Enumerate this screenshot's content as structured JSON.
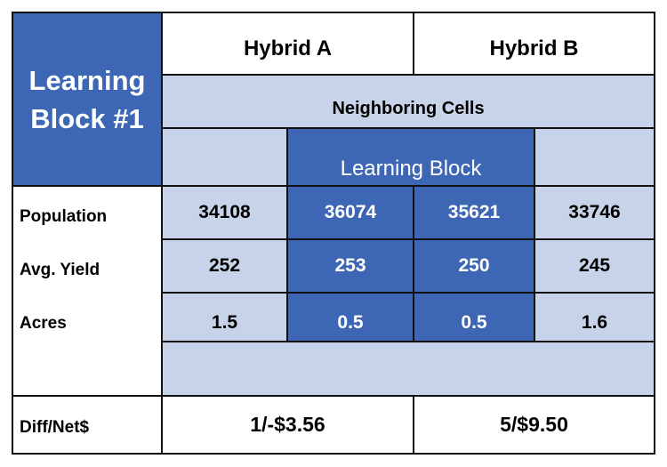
{
  "title": {
    "line1": "Learning",
    "line2": "Block #1"
  },
  "headers": {
    "hybrid_a": "Hybrid A",
    "hybrid_b": "Hybrid B",
    "neighboring_cells": "Neighboring Cells",
    "learning_block": "Learning Block"
  },
  "rows": [
    {
      "label": "Population",
      "values": [
        "34108",
        "36074",
        "35621",
        "33746"
      ]
    },
    {
      "label": "Avg. Yield",
      "values": [
        "252",
        "253",
        "250",
        "245"
      ]
    },
    {
      "label": "Acres",
      "values": [
        "1.5",
        "0.5",
        "0.5",
        "1.6"
      ]
    }
  ],
  "footer": {
    "label": "Diff/Net$",
    "hybrid_a": "1/-$3.56",
    "hybrid_b": "5/$9.50"
  },
  "colors": {
    "dark_blue": "#3d67b5",
    "light_blue": "#c7d3e8",
    "border": "#111111"
  }
}
